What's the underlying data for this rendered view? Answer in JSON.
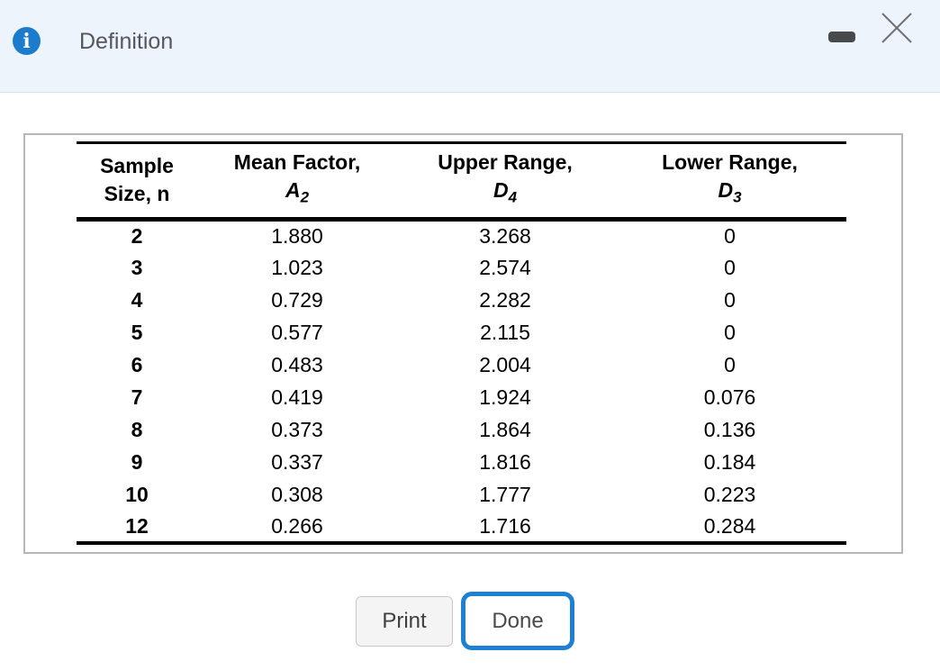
{
  "header": {
    "title": "Definition",
    "info_icon_glyph": "i",
    "accent_blue": "#1b7cce",
    "background": "#eef4fb"
  },
  "window_controls": {
    "minimize_icon": "minimize-dash",
    "close_icon": "close-x"
  },
  "table": {
    "columns": [
      {
        "line1": "Sample",
        "line2": "Size, n"
      },
      {
        "line1": "Mean Factor,",
        "symbol": "A",
        "subscript": "2"
      },
      {
        "line1": "Upper Range,",
        "symbol": "D",
        "subscript": "4"
      },
      {
        "line1": "Lower Range,",
        "symbol": "D",
        "subscript": "3"
      }
    ],
    "rows": [
      {
        "n": "2",
        "a2": "1.880",
        "d4": "3.268",
        "d3": "0"
      },
      {
        "n": "3",
        "a2": "1.023",
        "d4": "2.574",
        "d3": "0"
      },
      {
        "n": "4",
        "a2": "0.729",
        "d4": "2.282",
        "d3": "0"
      },
      {
        "n": "5",
        "a2": "0.577",
        "d4": "2.115",
        "d3": "0"
      },
      {
        "n": "6",
        "a2": "0.483",
        "d4": "2.004",
        "d3": "0"
      },
      {
        "n": "7",
        "a2": "0.419",
        "d4": "1.924",
        "d3": "0.076"
      },
      {
        "n": "8",
        "a2": "0.373",
        "d4": "1.864",
        "d3": "0.136"
      },
      {
        "n": "9",
        "a2": "0.337",
        "d4": "1.816",
        "d3": "0.184"
      },
      {
        "n": "10",
        "a2": "0.308",
        "d4": "1.777",
        "d3": "0.223"
      },
      {
        "n": "12",
        "a2": "0.266",
        "d4": "1.716",
        "d3": "0.284"
      }
    ]
  },
  "buttons": {
    "print": "Print",
    "done": "Done",
    "done_border": "#1d80d4"
  }
}
